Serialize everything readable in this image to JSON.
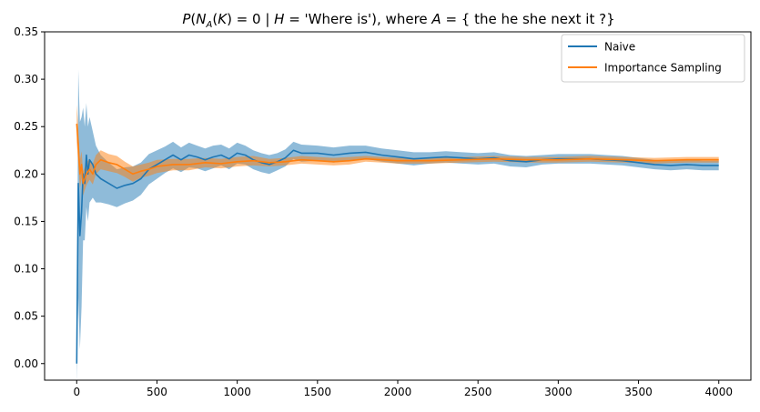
{
  "chart_data": {
    "type": "line",
    "title": {
      "prefix_italic": "P",
      "part1": "(",
      "n_italic": "N",
      "n_sub": "A",
      "part2": "(",
      "k_italic": "K",
      "part3": ") = 0 | ",
      "h_italic": "H",
      "part4": " = 'Where is'), where ",
      "a_italic": "A",
      "part5": " = { the he she next it ?}"
    },
    "xlabel": "",
    "ylabel": "",
    "xlim": [
      -200,
      4200
    ],
    "ylim": [
      -0.0175,
      0.35
    ],
    "xticks": [
      0,
      500,
      1000,
      1500,
      2000,
      2500,
      3000,
      3500,
      4000
    ],
    "yticks": [
      "0.00",
      "0.05",
      "0.10",
      "0.15",
      "0.20",
      "0.25",
      "0.30",
      "0.35"
    ],
    "grid": false,
    "legend_position": "top-right",
    "series": [
      {
        "name": "Naive",
        "color": "#1f77b4",
        "x": [
          0,
          10,
          20,
          30,
          40,
          50,
          60,
          70,
          80,
          100,
          120,
          150,
          200,
          250,
          300,
          350,
          400,
          450,
          500,
          550,
          600,
          650,
          700,
          750,
          800,
          850,
          900,
          950,
          1000,
          1050,
          1100,
          1150,
          1200,
          1250,
          1300,
          1350,
          1400,
          1500,
          1600,
          1700,
          1800,
          1900,
          2000,
          2100,
          2200,
          2300,
          2400,
          2500,
          2600,
          2700,
          2800,
          2900,
          3000,
          3100,
          3200,
          3300,
          3400,
          3500,
          3600,
          3700,
          3800,
          3900,
          4000
        ],
        "y": [
          0.0,
          0.19,
          0.135,
          0.16,
          0.2,
          0.19,
          0.22,
          0.2,
          0.215,
          0.21,
          0.2,
          0.195,
          0.19,
          0.185,
          0.188,
          0.19,
          0.195,
          0.205,
          0.21,
          0.215,
          0.22,
          0.215,
          0.22,
          0.218,
          0.215,
          0.218,
          0.22,
          0.216,
          0.222,
          0.22,
          0.215,
          0.212,
          0.21,
          0.213,
          0.217,
          0.225,
          0.222,
          0.222,
          0.22,
          0.222,
          0.223,
          0.22,
          0.218,
          0.216,
          0.217,
          0.218,
          0.217,
          0.216,
          0.217,
          0.214,
          0.213,
          0.215,
          0.216,
          0.216,
          0.216,
          0.215,
          0.214,
          0.212,
          0.21,
          0.209,
          0.21,
          0.209,
          0.209
        ],
        "band": [
          0.02,
          0.12,
          0.12,
          0.1,
          0.07,
          0.06,
          0.055,
          0.05,
          0.045,
          0.035,
          0.03,
          0.025,
          0.022,
          0.02,
          0.019,
          0.018,
          0.017,
          0.016,
          0.015,
          0.014,
          0.014,
          0.013,
          0.013,
          0.012,
          0.012,
          0.012,
          0.011,
          0.011,
          0.011,
          0.01,
          0.01,
          0.01,
          0.01,
          0.009,
          0.009,
          0.009,
          0.009,
          0.008,
          0.008,
          0.008,
          0.007,
          0.007,
          0.007,
          0.007,
          0.006,
          0.006,
          0.006,
          0.006,
          0.006,
          0.006,
          0.006,
          0.005,
          0.005,
          0.005,
          0.005,
          0.005,
          0.005,
          0.005,
          0.005,
          0.005,
          0.005,
          0.005,
          0.005
        ]
      },
      {
        "name": "Importance Sampling",
        "color": "#ff7f0e",
        "x": [
          0,
          10,
          20,
          30,
          40,
          50,
          60,
          80,
          100,
          120,
          150,
          200,
          250,
          300,
          350,
          400,
          450,
          500,
          600,
          700,
          800,
          900,
          1000,
          1100,
          1200,
          1300,
          1400,
          1500,
          1600,
          1700,
          1800,
          1900,
          2000,
          2200,
          2400,
          2600,
          2800,
          3000,
          3200,
          3400,
          3600,
          3800,
          4000
        ],
        "y": [
          0.253,
          0.23,
          0.2,
          0.21,
          0.19,
          0.195,
          0.2,
          0.205,
          0.2,
          0.21,
          0.215,
          0.212,
          0.21,
          0.205,
          0.2,
          0.203,
          0.205,
          0.208,
          0.21,
          0.21,
          0.212,
          0.211,
          0.213,
          0.214,
          0.212,
          0.213,
          0.215,
          0.214,
          0.213,
          0.214,
          0.216,
          0.215,
          0.214,
          0.214,
          0.215,
          0.216,
          0.215,
          0.215,
          0.216,
          0.215,
          0.214,
          0.215,
          0.215
        ],
        "band": [
          0.02,
          0.02,
          0.015,
          0.014,
          0.013,
          0.012,
          0.012,
          0.011,
          0.011,
          0.01,
          0.01,
          0.009,
          0.009,
          0.008,
          0.008,
          0.007,
          0.007,
          0.007,
          0.006,
          0.006,
          0.005,
          0.005,
          0.005,
          0.005,
          0.004,
          0.004,
          0.004,
          0.004,
          0.004,
          0.004,
          0.003,
          0.003,
          0.003,
          0.003,
          0.003,
          0.003,
          0.003,
          0.003,
          0.003,
          0.003,
          0.003,
          0.003,
          0.003
        ]
      }
    ]
  }
}
